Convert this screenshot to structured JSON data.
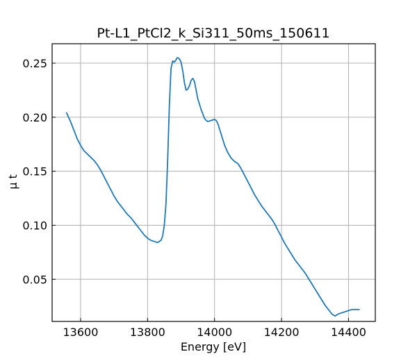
{
  "chart_data": {
    "type": "line",
    "title": "Pt-L1_PtCl2_k_Si311_50ms_150611",
    "xlabel": "Energy [eV]",
    "ylabel": "μ t",
    "xlim": [
      13515,
      14480
    ],
    "ylim": [
      0.011,
      0.268
    ],
    "xticks": [
      13600,
      13800,
      14000,
      14200,
      14400
    ],
    "xtick_labels": [
      "13600",
      "13800",
      "14000",
      "14200",
      "14400"
    ],
    "yticks": [
      0.05,
      0.1,
      0.15,
      0.2,
      0.25
    ],
    "ytick_labels": [
      "0.05",
      "0.10",
      "0.15",
      "0.20",
      "0.25"
    ],
    "grid": true,
    "series": [
      {
        "color": "#1f77b4",
        "x": [
          13558,
          13570,
          13580,
          13590,
          13600,
          13610,
          13620,
          13630,
          13640,
          13650,
          13660,
          13670,
          13680,
          13690,
          13700,
          13710,
          13720,
          13730,
          13740,
          13750,
          13760,
          13770,
          13780,
          13790,
          13800,
          13810,
          13820,
          13830,
          13840,
          13845,
          13850,
          13855,
          13860,
          13865,
          13870,
          13875,
          13880,
          13885,
          13888,
          13891,
          13895,
          13900,
          13905,
          13910,
          13915,
          13920,
          13925,
          13930,
          13935,
          13940,
          13945,
          13950,
          13955,
          13960,
          13965,
          13970,
          13975,
          13980,
          13990,
          14000,
          14005,
          14010,
          14015,
          14020,
          14025,
          14030,
          14040,
          14050,
          14060,
          14070,
          14080,
          14090,
          14100,
          14110,
          14120,
          14130,
          14140,
          14150,
          14160,
          14170,
          14180,
          14190,
          14200,
          14210,
          14220,
          14230,
          14240,
          14250,
          14260,
          14270,
          14280,
          14290,
          14300,
          14310,
          14320,
          14330,
          14340,
          14350,
          14360,
          14370,
          14380,
          14390,
          14400,
          14410,
          14420,
          14432
        ],
        "y": [
          0.204,
          0.196,
          0.188,
          0.18,
          0.174,
          0.169,
          0.166,
          0.163,
          0.16,
          0.156,
          0.151,
          0.145,
          0.139,
          0.133,
          0.127,
          0.122,
          0.118,
          0.114,
          0.11,
          0.107,
          0.103,
          0.099,
          0.095,
          0.091,
          0.088,
          0.086,
          0.085,
          0.084,
          0.086,
          0.09,
          0.1,
          0.12,
          0.16,
          0.21,
          0.245,
          0.252,
          0.251,
          0.253,
          0.255,
          0.255,
          0.254,
          0.251,
          0.243,
          0.232,
          0.225,
          0.226,
          0.229,
          0.234,
          0.236,
          0.233,
          0.225,
          0.217,
          0.212,
          0.207,
          0.203,
          0.199,
          0.197,
          0.196,
          0.197,
          0.198,
          0.197,
          0.194,
          0.189,
          0.184,
          0.179,
          0.174,
          0.167,
          0.162,
          0.159,
          0.157,
          0.152,
          0.146,
          0.14,
          0.134,
          0.128,
          0.123,
          0.118,
          0.114,
          0.11,
          0.106,
          0.101,
          0.095,
          0.089,
          0.083,
          0.078,
          0.073,
          0.068,
          0.064,
          0.06,
          0.056,
          0.051,
          0.046,
          0.041,
          0.036,
          0.031,
          0.026,
          0.022,
          0.018,
          0.016,
          0.018,
          0.019,
          0.02,
          0.021,
          0.022,
          0.022,
          0.022
        ]
      }
    ]
  }
}
